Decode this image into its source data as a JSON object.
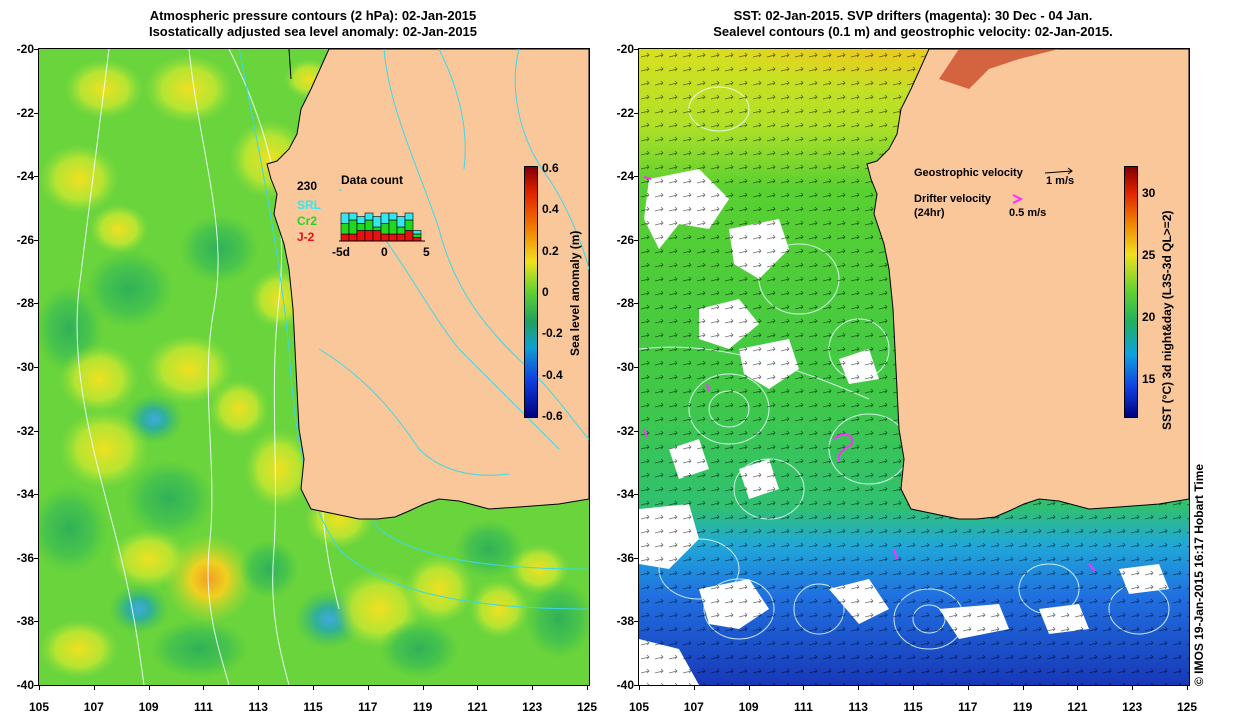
{
  "left": {
    "title_line1": "Atmospheric pressure contours (2 hPa): 02-Jan-2015",
    "title_line2": "Isostatically adjusted sea level anomaly: 02-Jan-2015",
    "colorbar_label": "Sea level anomaly (m)",
    "colorbar_ticks": [
      "0.6",
      "0.4",
      "0.2",
      "0",
      "-0.2",
      "-0.4",
      "-0.6"
    ],
    "colorbar_range": [
      -0.6,
      0.6
    ],
    "inset": {
      "count_label": "230",
      "title": "Data count",
      "satellites": [
        "SRL",
        "Cr2",
        "J-2"
      ],
      "satellite_colors": [
        "#33e6f0",
        "#1fd81f",
        "#e81010"
      ],
      "x_ticks": [
        "-5d",
        "0",
        "5"
      ]
    }
  },
  "right": {
    "title_line1": "SST: 02-Jan-2015. SVP drifters (magenta): 30 Dec - 04 Jan.",
    "title_line2": "Sealevel contours (0.1 m) and geostrophic velocity: 02-Jan-2015.",
    "colorbar_label": "SST (°C) 3d night&day (L3S-3d QL>=2)",
    "colorbar_ticks": [
      "30",
      "25",
      "20",
      "15"
    ],
    "colorbar_range": [
      12,
      32
    ],
    "legend": {
      "geo_label": "Geostrophic velocity",
      "geo_scale": "1 m/s",
      "drifter_label": "Drifter velocity",
      "drifter_sub": "(24hr)",
      "drifter_scale": "0.5 m/s"
    }
  },
  "axes": {
    "y_ticks": [
      "-20",
      "-22",
      "-24",
      "-26",
      "-28",
      "-30",
      "-32",
      "-34",
      "-36",
      "-38",
      "-40"
    ],
    "x_ticks": [
      "105",
      "107",
      "109",
      "111",
      "113",
      "115",
      "117",
      "119",
      "121",
      "123",
      "125"
    ],
    "lat_range": [
      -40,
      -20
    ],
    "lon_range": [
      105,
      125
    ]
  },
  "credit": "© IMOS 19-Jan-2015 16:17 Hobart Time",
  "colors": {
    "land": "#f9c79a",
    "coast": "#000000",
    "pressure_contour": "#e8ffff",
    "bathymetry_contour": "#3cd8e8",
    "drifter": "#ff30ff"
  }
}
